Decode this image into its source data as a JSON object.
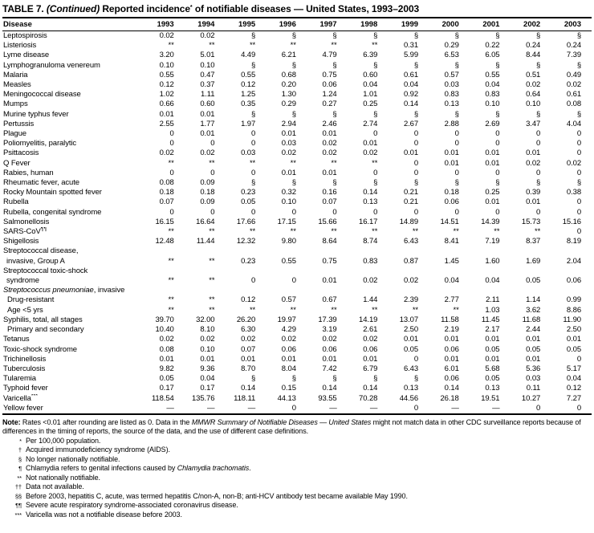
{
  "colors": {
    "text": "#000000",
    "background": "#ffffff",
    "rule": "#000000"
  },
  "title_parts": [
    {
      "t": "TABLE 7. "
    },
    {
      "t": "(Continued)",
      "i": true
    },
    {
      "t": " Reported incidence"
    },
    {
      "t": "*",
      "sup": true
    },
    {
      "t": " of notifiable diseases — United States, 1993–2003"
    }
  ],
  "table": {
    "disease_header": "Disease",
    "years": [
      "1993",
      "1994",
      "1995",
      "1996",
      "1997",
      "1998",
      "1999",
      "2000",
      "2001",
      "2002",
      "2003"
    ],
    "rows": [
      {
        "label": "Leptospirosis",
        "values": [
          "0.02",
          "0.02",
          "§",
          "§",
          "§",
          "§",
          "§",
          "§",
          "§",
          "§",
          "§"
        ]
      },
      {
        "label": "Listeriosis",
        "values": [
          "**",
          "**",
          "**",
          "**",
          "**",
          "**",
          "0.31",
          "0.29",
          "0.22",
          "0.24",
          "0.24"
        ]
      },
      {
        "label": "Lyme disease",
        "values": [
          "3.20",
          "5.01",
          "4.49",
          "6.21",
          "4.79",
          "6.39",
          "5.99",
          "6.53",
          "6.05",
          "8.44",
          "7.39"
        ]
      },
      {
        "label": "Lymphogranuloma venereum",
        "values": [
          "0.10",
          "0.10",
          "§",
          "§",
          "§",
          "§",
          "§",
          "§",
          "§",
          "§",
          "§"
        ]
      },
      {
        "label": "Malaria",
        "values": [
          "0.55",
          "0.47",
          "0.55",
          "0.68",
          "0.75",
          "0.60",
          "0.61",
          "0.57",
          "0.55",
          "0.51",
          "0.49"
        ]
      },
      {
        "label": "Measles",
        "values": [
          "0.12",
          "0.37",
          "0.12",
          "0.20",
          "0.06",
          "0.04",
          "0.04",
          "0.03",
          "0.04",
          "0.02",
          "0.02"
        ]
      },
      {
        "label": "Meningococcal disease",
        "values": [
          "1.02",
          "1.11",
          "1.25",
          "1.30",
          "1.24",
          "1.01",
          "0.92",
          "0.83",
          "0.83",
          "0.64",
          "0.61"
        ]
      },
      {
        "label": "Mumps",
        "values": [
          "0.66",
          "0.60",
          "0.35",
          "0.29",
          "0.27",
          "0.25",
          "0.14",
          "0.13",
          "0.10",
          "0.10",
          "0.08"
        ]
      },
      {
        "label": "Murine typhus fever",
        "values": [
          "0.01",
          "0.01",
          "§",
          "§",
          "§",
          "§",
          "§",
          "§",
          "§",
          "§",
          "§"
        ]
      },
      {
        "label": "Pertussis",
        "values": [
          "2.55",
          "1.77",
          "1.97",
          "2.94",
          "2.46",
          "2.74",
          "2.67",
          "2.88",
          "2.69",
          "3.47",
          "4.04"
        ]
      },
      {
        "label": "Plague",
        "values": [
          "0",
          "0.01",
          "0",
          "0.01",
          "0.01",
          "0",
          "0",
          "0",
          "0",
          "0",
          "0"
        ]
      },
      {
        "label": "Poliomyelitis, paralytic",
        "values": [
          "0",
          "0",
          "0",
          "0.03",
          "0.02",
          "0.01",
          "0",
          "0",
          "0",
          "0",
          "0"
        ]
      },
      {
        "label": "Psittacosis",
        "values": [
          "0.02",
          "0.02",
          "0.03",
          "0.02",
          "0.02",
          "0.02",
          "0.01",
          "0.01",
          "0.01",
          "0.01",
          "0"
        ]
      },
      {
        "label": "Q Fever",
        "values": [
          "**",
          "**",
          "**",
          "**",
          "**",
          "**",
          "0",
          "0.01",
          "0.01",
          "0.02",
          "0.02"
        ]
      },
      {
        "label": "Rabies, human",
        "values": [
          "0",
          "0",
          "0",
          "0.01",
          "0.01",
          "0",
          "0",
          "0",
          "0",
          "0",
          "0"
        ]
      },
      {
        "label": "Rheumatic fever, acute",
        "values": [
          "0.08",
          "0.09",
          "§",
          "§",
          "§",
          "§",
          "§",
          "§",
          "§",
          "§",
          "§"
        ]
      },
      {
        "label": "Rocky Mountain spotted fever",
        "values": [
          "0.18",
          "0.18",
          "0.23",
          "0.32",
          "0.16",
          "0.14",
          "0.21",
          "0.18",
          "0.25",
          "0.39",
          "0.38"
        ]
      },
      {
        "label": "Rubella",
        "values": [
          "0.07",
          "0.09",
          "0.05",
          "0.10",
          "0.07",
          "0.13",
          "0.21",
          "0.06",
          "0.01",
          "0.01",
          "0"
        ]
      },
      {
        "label": "Rubella, congenital syndrome",
        "values": [
          "0",
          "0",
          "0",
          "0",
          "0",
          "0",
          "0",
          "0",
          "0",
          "0",
          "0"
        ]
      },
      {
        "label": "Salmonellosis",
        "values": [
          "16.15",
          "16.64",
          "17.66",
          "17.15",
          "15.66",
          "16.17",
          "14.89",
          "14.51",
          "14.39",
          "15.73",
          "15.16"
        ]
      },
      {
        "label": "SARS-CoV",
        "sup": "¶¶",
        "values": [
          "**",
          "**",
          "**",
          "**",
          "**",
          "**",
          "**",
          "**",
          "**",
          "**",
          "0"
        ]
      },
      {
        "label": "Shigellosis",
        "values": [
          "12.48",
          "11.44",
          "12.32",
          "9.80",
          "8.64",
          "8.74",
          "6.43",
          "8.41",
          "7.19",
          "8.37",
          "8.19"
        ]
      },
      {
        "label": "Streptococcal disease,",
        "label2": "invasive, Group A",
        "values": [
          "**",
          "**",
          "0.23",
          "0.55",
          "0.75",
          "0.83",
          "0.87",
          "1.45",
          "1.60",
          "1.69",
          "2.04"
        ]
      },
      {
        "label": "Streptococcal toxic-shock",
        "label2": "syndrome",
        "values": [
          "**",
          "**",
          "0",
          "0",
          "0.01",
          "0.02",
          "0.02",
          "0.04",
          "0.04",
          "0.05",
          "0.06"
        ]
      },
      {
        "heading": true,
        "italic_label": "Streptococcus pneumoniae",
        "label_suffix": ", invasive"
      },
      {
        "label": "Drug-resistant",
        "indent": true,
        "values": [
          "**",
          "**",
          "0.12",
          "0.57",
          "0.67",
          "1.44",
          "2.39",
          "2.77",
          "2.11",
          "1.14",
          "0.99"
        ]
      },
      {
        "label": "Age <5 yrs",
        "indent": true,
        "values": [
          "**",
          "**",
          "**",
          "**",
          "**",
          "**",
          "**",
          "**",
          "1.03",
          "3.62",
          "8.86"
        ]
      },
      {
        "label": "Syphilis, total, all stages",
        "values": [
          "39.70",
          "32.00",
          "26.20",
          "19.97",
          "17.39",
          "14.19",
          "13.07",
          "11.58",
          "11.45",
          "11.68",
          "11.90"
        ]
      },
      {
        "label": "Primary and secondary",
        "indent": true,
        "values": [
          "10.40",
          "8.10",
          "6.30",
          "4.29",
          "3.19",
          "2.61",
          "2.50",
          "2.19",
          "2.17",
          "2.44",
          "2.50"
        ]
      },
      {
        "label": "Tetanus",
        "values": [
          "0.02",
          "0.02",
          "0.02",
          "0.02",
          "0.02",
          "0.02",
          "0.01",
          "0.01",
          "0.01",
          "0.01",
          "0.01"
        ]
      },
      {
        "label": "Toxic-shock syndrome",
        "values": [
          "0.08",
          "0.10",
          "0.07",
          "0.06",
          "0.06",
          "0.06",
          "0.05",
          "0.06",
          "0.05",
          "0.05",
          "0.05"
        ]
      },
      {
        "label": "Trichinellosis",
        "values": [
          "0.01",
          "0.01",
          "0.01",
          "0.01",
          "0.01",
          "0.01",
          "0",
          "0.01",
          "0.01",
          "0.01",
          "0"
        ]
      },
      {
        "label": "Tuberculosis",
        "values": [
          "9.82",
          "9.36",
          "8.70",
          "8.04",
          "7.42",
          "6.79",
          "6.43",
          "6.01",
          "5.68",
          "5.36",
          "5.17"
        ]
      },
      {
        "label": "Tularemia",
        "values": [
          "0.05",
          "0.04",
          "§",
          "§",
          "§",
          "§",
          "§",
          "0.06",
          "0.05",
          "0.03",
          "0.04"
        ]
      },
      {
        "label": "Typhoid fever",
        "values": [
          "0.17",
          "0.17",
          "0.14",
          "0.15",
          "0.14",
          "0.14",
          "0.13",
          "0.14",
          "0.13",
          "0.11",
          "0.12"
        ]
      },
      {
        "label": "Varicella",
        "sup": "***",
        "values": [
          "118.54",
          "135.76",
          "118.11",
          "44.13",
          "93.55",
          "70.28",
          "44.56",
          "26.18",
          "19.51",
          "10.27",
          "7.27"
        ]
      },
      {
        "label": "Yellow fever",
        "values": [
          "—",
          "—",
          "—",
          "0",
          "—",
          "—",
          "0",
          "—",
          "—",
          "0",
          "0"
        ]
      }
    ]
  },
  "note_parts": [
    {
      "t": "Note:",
      "b": true
    },
    {
      "t": " Rates <0.01 after rounding are listed as 0. Data in the "
    },
    {
      "t": "MMWR Summary of Notifiable Diseases — United States",
      "i": true
    },
    {
      "t": " might not match data in other CDC surveillance reports because of differences in the timing of reports, the source of the data, and the use of different case definitions."
    }
  ],
  "footnotes": [
    {
      "sym": "*",
      "parts": [
        {
          "t": "Per 100,000 population."
        }
      ]
    },
    {
      "sym": "†",
      "parts": [
        {
          "t": "Acquired immunodeficiency syndrome (AIDS)."
        }
      ]
    },
    {
      "sym": "§",
      "parts": [
        {
          "t": "No longer nationally notifiable."
        }
      ]
    },
    {
      "sym": "¶",
      "parts": [
        {
          "t": "Chlamydia refers to genital infections caused by "
        },
        {
          "t": "Chlamydia trachomatis",
          "i": true
        },
        {
          "t": "."
        }
      ]
    },
    {
      "sym": "**",
      "parts": [
        {
          "t": "Not nationally notifiable."
        }
      ]
    },
    {
      "sym": "††",
      "parts": [
        {
          "t": "Data not available."
        }
      ]
    },
    {
      "sym": "§§",
      "parts": [
        {
          "t": "Before 2003, hepatitis C, acute, was termed hepatitis C/non-A, non-B; anti-HCV antibody test became available May 1990."
        }
      ]
    },
    {
      "sym": "¶¶",
      "parts": [
        {
          "t": "Severe acute respiratory syndrome-associated coronavirus disease."
        }
      ]
    },
    {
      "sym": "***",
      "parts": [
        {
          "t": "Varicella was not a notifiable disease before 2003."
        }
      ]
    }
  ]
}
